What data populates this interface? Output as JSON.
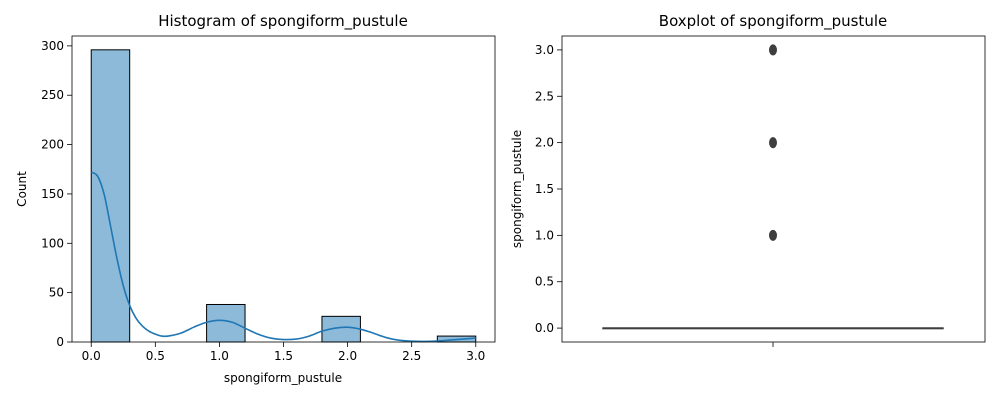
{
  "chart_data": [
    {
      "type": "bar",
      "title": "Histogram of spongiform_pustule",
      "xlabel": "spongiform_pustule",
      "ylabel": "Count",
      "xlim": [
        -0.15,
        3.15
      ],
      "ylim": [
        0,
        310
      ],
      "xticks": [
        "0.0",
        "0.5",
        "1.0",
        "1.5",
        "2.0",
        "2.5",
        "3.0"
      ],
      "xtick_values": [
        0,
        0.5,
        1.0,
        1.5,
        2.0,
        2.5,
        3.0
      ],
      "yticks": [
        "0",
        "50",
        "100",
        "150",
        "200",
        "250",
        "300"
      ],
      "ytick_values": [
        0,
        50,
        100,
        150,
        200,
        250,
        300
      ],
      "bins": [
        {
          "start": 0.0,
          "end": 0.3,
          "count": 296
        },
        {
          "start": 0.9,
          "end": 1.2,
          "count": 38
        },
        {
          "start": 1.8,
          "end": 2.1,
          "count": 26
        },
        {
          "start": 2.7,
          "end": 3.0,
          "count": 6
        }
      ],
      "kde": {
        "x": [
          0.0,
          0.05,
          0.1,
          0.15,
          0.2,
          0.25,
          0.3,
          0.35,
          0.4,
          0.45,
          0.5,
          0.55,
          0.6,
          0.7,
          0.8,
          0.9,
          1.0,
          1.1,
          1.2,
          1.3,
          1.4,
          1.5,
          1.6,
          1.7,
          1.8,
          1.9,
          2.0,
          2.1,
          2.2,
          2.3,
          2.4,
          2.5,
          2.6,
          2.7,
          2.8,
          2.9,
          3.0
        ],
        "y": [
          172,
          168,
          150,
          118,
          85,
          57,
          37,
          24,
          16,
          11,
          8,
          6,
          6,
          9,
          15,
          20,
          22,
          20,
          14,
          8,
          4,
          2.5,
          3,
          6,
          11,
          14,
          15,
          13,
          9,
          4.5,
          1.8,
          0.8,
          0.6,
          1,
          2,
          3,
          4
        ]
      },
      "colors": {
        "bar_fill": "#8dbad9",
        "bar_edge": "#000000",
        "kde": "#1f77b4"
      }
    },
    {
      "type": "box",
      "title": "Boxplot of spongiform_pustule",
      "xlabel": "",
      "ylabel": "spongiform_pustule",
      "ylim": [
        -0.15,
        3.15
      ],
      "yticks": [
        "0.0",
        "0.5",
        "1.0",
        "1.5",
        "2.0",
        "2.5",
        "3.0"
      ],
      "ytick_values": [
        0,
        0.5,
        1.0,
        1.5,
        2.0,
        2.5,
        3.0
      ],
      "box": {
        "q1": 0,
        "median": 0,
        "q3": 0,
        "whisker_low": 0,
        "whisker_high": 0
      },
      "outliers": [
        1.0,
        2.0,
        3.0
      ],
      "colors": {
        "box_edge": "#3f3f3f",
        "outlier": "#3f3f3f"
      }
    }
  ]
}
